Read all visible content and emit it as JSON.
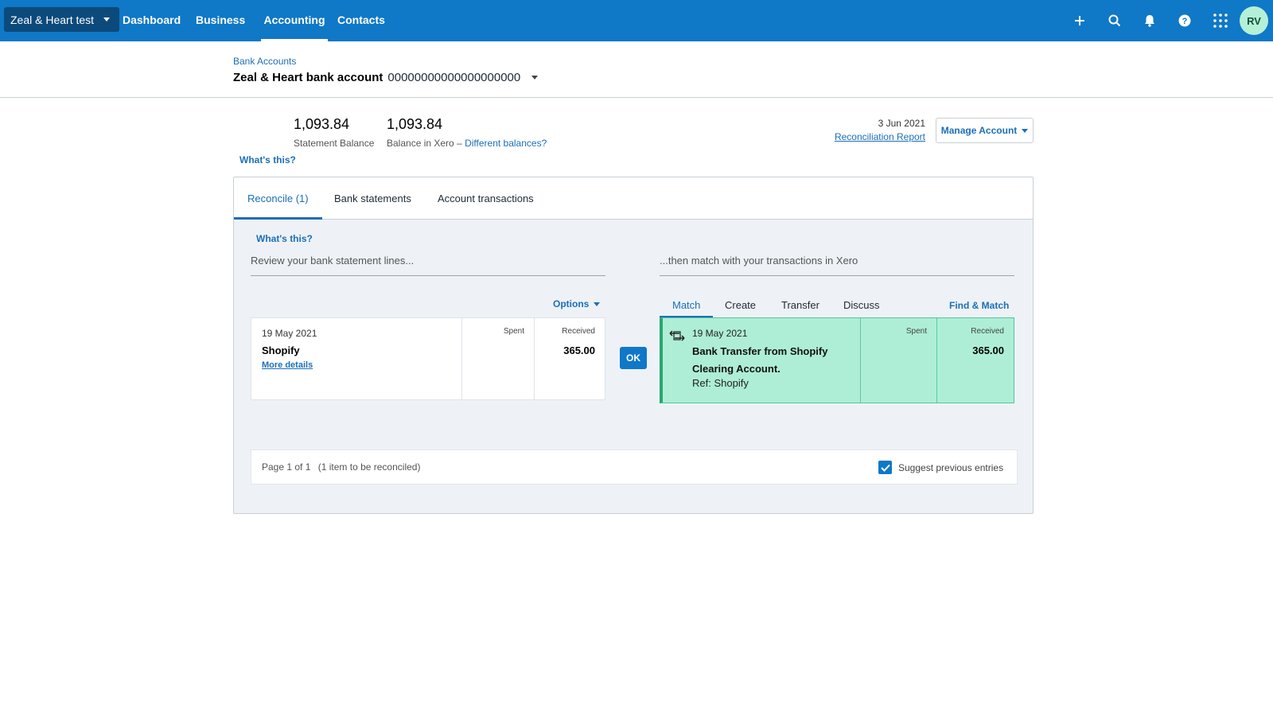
{
  "topnav": {
    "org_name": "Zeal & Heart test",
    "links": [
      "Dashboard",
      "Business",
      "Accounting",
      "Contacts"
    ],
    "active_link": "Accounting",
    "avatar_initials": "RV",
    "icons": [
      "plus-icon",
      "search-icon",
      "bell-icon",
      "help-icon",
      "apps-grid-icon"
    ]
  },
  "header": {
    "breadcrumb": "Bank Accounts",
    "account_name": "Zeal & Heart bank account",
    "account_number": "00000000000000000000"
  },
  "balances": {
    "statement_amount": "1,093.84",
    "statement_label": "Statement Balance",
    "xero_amount": "1,093.84",
    "xero_label": "Balance in Xero",
    "different_link": "Different balances?",
    "whats_this": "What's this?"
  },
  "report": {
    "date": "3 Jun 2021",
    "link": "Reconciliation Report",
    "manage_label": "Manage Account"
  },
  "tabs": [
    "Reconcile (1)",
    "Bank statements",
    "Account transactions"
  ],
  "reconcile": {
    "whats_this": "What's this?",
    "left_heading": "Review your bank statement lines...",
    "right_heading": "...then match with your transactions in Xero",
    "options_label": "Options",
    "statement_line": {
      "date": "19 May 2021",
      "payee": "Shopify",
      "more_details": "More details",
      "spent_label": "Spent",
      "received_label": "Received",
      "received": "365.00"
    },
    "ok_label": "OK",
    "match_tabs": [
      "Match",
      "Create",
      "Transfer",
      "Discuss"
    ],
    "find_match": "Find & Match",
    "match_line": {
      "date": "19 May 2021",
      "description": "Bank Transfer from Shopify Clearing Account.",
      "ref": "Ref: Shopify",
      "spent_label": "Spent",
      "received_label": "Received",
      "received": "365.00"
    },
    "footer": {
      "page": "Page 1 of 1",
      "count": "(1 item to be reconciled)",
      "suggest_label": "Suggest previous entries",
      "suggest_checked": true
    }
  },
  "colors": {
    "nav_bg": "#0f78c7",
    "org_bg": "#0c4a7c",
    "link": "#1b6fb8",
    "match_bg": "#aeeed6",
    "match_border": "#26a772"
  }
}
